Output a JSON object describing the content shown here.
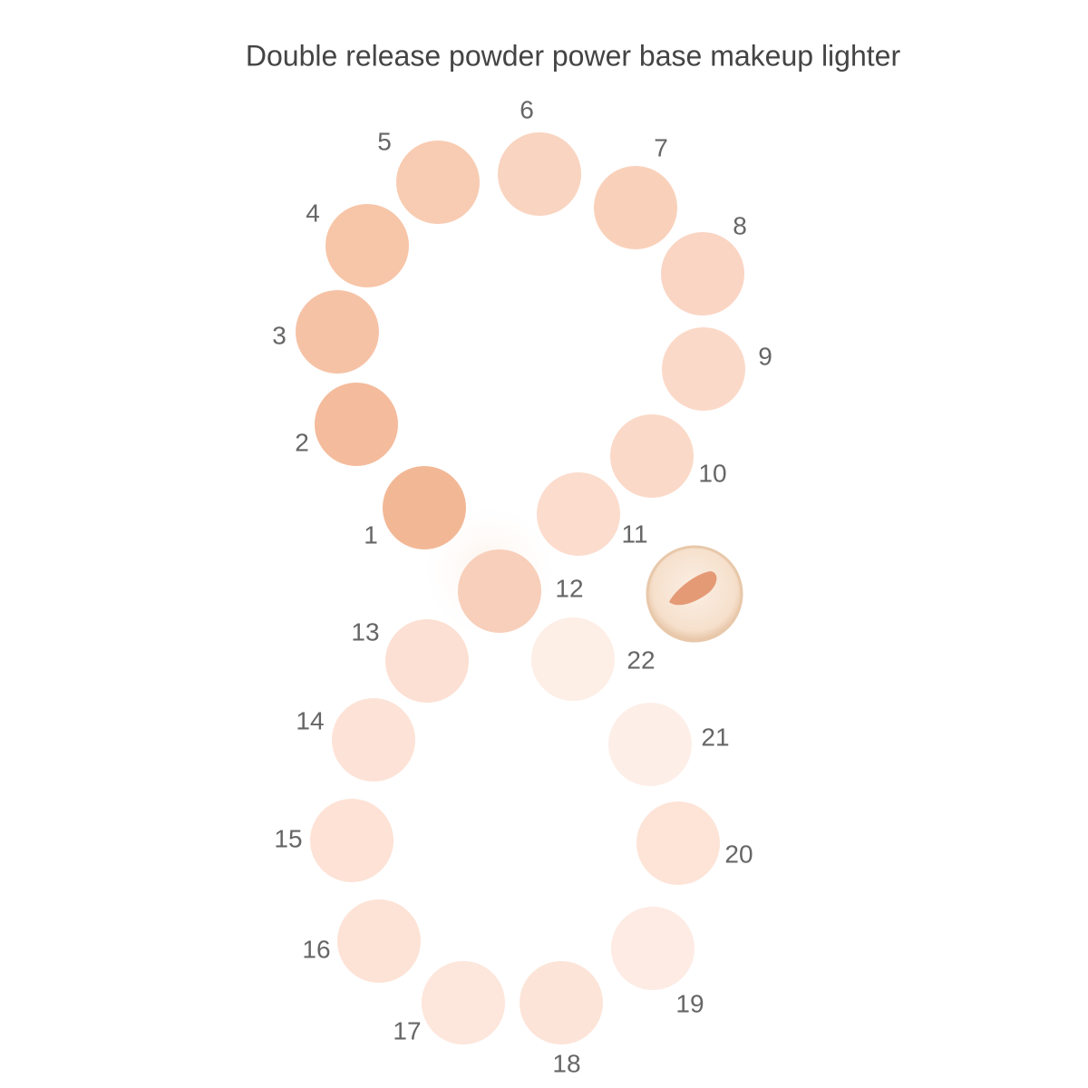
{
  "title": "Double release powder power base makeup lighter",
  "swatches": [
    {
      "label": "1",
      "color": "#f2b896"
    },
    {
      "label": "2",
      "color": "#f4bb9c"
    },
    {
      "label": "3",
      "color": "#f6c2a6"
    },
    {
      "label": "4",
      "color": "#f7c5a8"
    },
    {
      "label": "5",
      "color": "#f8ccb2"
    },
    {
      "label": "6",
      "color": "#f9d4c0"
    },
    {
      "label": "7",
      "color": "#f9d1bb"
    },
    {
      "label": "8",
      "color": "#fad5c4"
    },
    {
      "label": "9",
      "color": "#fbd9c9"
    },
    {
      "label": "10",
      "color": "#fbd9c8"
    },
    {
      "label": "11",
      "color": "#fcdccd"
    },
    {
      "label": "12",
      "color": "#f8cfba"
    },
    {
      "label": "13",
      "color": "#fce0d3"
    },
    {
      "label": "14",
      "color": "#fde3d7"
    },
    {
      "label": "15",
      "color": "#fde2d5"
    },
    {
      "label": "16",
      "color": "#fde3d6"
    },
    {
      "label": "17",
      "color": "#fde6db"
    },
    {
      "label": "18",
      "color": "#fde4d8"
    },
    {
      "label": "19",
      "color": "#fdebe4"
    },
    {
      "label": "20",
      "color": "#fde4d7"
    },
    {
      "label": "21",
      "color": "#fdefe8"
    },
    {
      "label": "22",
      "color": "#fdeee6"
    }
  ]
}
